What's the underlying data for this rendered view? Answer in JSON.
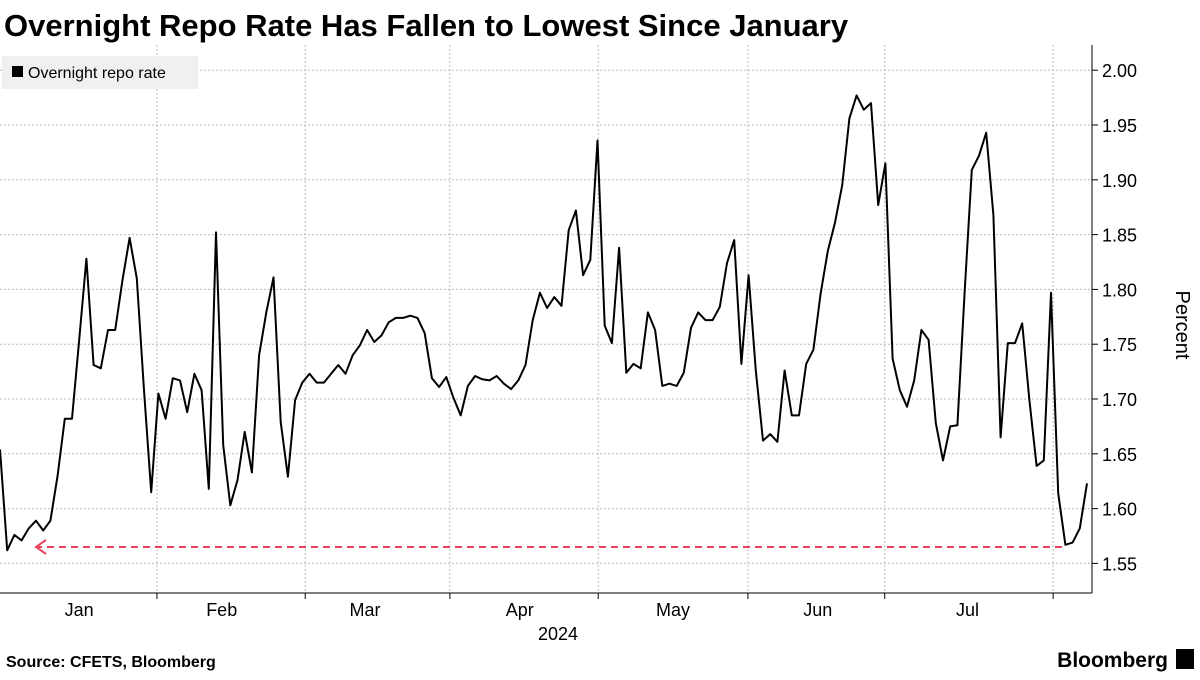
{
  "chart_data": {
    "type": "line",
    "title": "Overnight Repo Rate Has Fallen to Lowest Since January",
    "xlabel": "2024",
    "ylabel": "Percent",
    "source": "Source: CFETS, Bloomberg",
    "brand": "Bloomberg",
    "series": [
      {
        "name": "Overnight repo rate",
        "color": "#000000",
        "values": [
          1.654,
          1.562,
          1.576,
          1.571,
          1.582,
          1.589,
          1.58,
          1.589,
          1.63,
          1.682,
          1.682,
          1.754,
          1.828,
          1.731,
          1.728,
          1.763,
          1.763,
          1.808,
          1.847,
          1.81,
          1.708,
          1.615,
          1.705,
          1.682,
          1.719,
          1.717,
          1.688,
          1.723,
          1.708,
          1.618,
          1.852,
          1.658,
          1.603,
          1.626,
          1.67,
          1.633,
          1.74,
          1.779,
          1.811,
          1.679,
          1.629,
          1.699,
          1.715,
          1.723,
          1.715,
          1.715,
          1.723,
          1.731,
          1.723,
          1.74,
          1.749,
          1.763,
          1.752,
          1.758,
          1.77,
          1.774,
          1.774,
          1.776,
          1.774,
          1.76,
          1.719,
          1.711,
          1.72,
          1.701,
          1.685,
          1.712,
          1.721,
          1.718,
          1.717,
          1.721,
          1.714,
          1.709,
          1.717,
          1.731,
          1.772,
          1.797,
          1.783,
          1.793,
          1.785,
          1.854,
          1.872,
          1.813,
          1.827,
          1.936,
          1.767,
          1.751,
          1.838,
          1.724,
          1.732,
          1.728,
          1.779,
          1.763,
          1.712,
          1.714,
          1.712,
          1.724,
          1.765,
          1.779,
          1.772,
          1.772,
          1.784,
          1.824,
          1.845,
          1.732,
          1.813,
          1.726,
          1.662,
          1.668,
          1.661,
          1.726,
          1.685,
          1.685,
          1.732,
          1.745,
          1.796,
          1.835,
          1.861,
          1.895,
          1.956,
          1.977,
          1.964,
          1.97,
          1.877,
          1.915,
          1.737,
          1.708,
          1.693,
          1.717,
          1.763,
          1.754,
          1.678,
          1.644,
          1.675,
          1.676,
          1.797,
          1.909,
          1.922,
          1.943,
          1.868,
          1.665,
          1.751,
          1.751,
          1.769,
          1.699,
          1.639,
          1.644,
          1.797,
          1.614,
          1.567,
          1.569,
          1.582,
          1.623
        ]
      }
    ],
    "reference_line": {
      "value": 1.565,
      "color": "#e8415b"
    },
    "xlim": [
      0,
      151.7
    ],
    "xticks": [
      {
        "value": 11,
        "label": "Jan"
      },
      {
        "value": 30.8,
        "label": "Feb"
      },
      {
        "value": 50.7,
        "label": "Mar"
      },
      {
        "value": 72.2,
        "label": "Apr"
      },
      {
        "value": 93.5,
        "label": "May"
      },
      {
        "value": 113.6,
        "label": "Jun"
      },
      {
        "value": 134.4,
        "label": "Jul"
      }
    ],
    "xgrid": [
      21.8,
      42.4,
      62.5,
      83.1,
      103.9,
      122.9,
      146.3
    ],
    "ylim": [
      1.523,
      2.023
    ],
    "yticks": [
      1.55,
      {
        "value": 1.6,
        "label": "1.60"
      },
      1.65,
      {
        "value": 1.7,
        "label": "1.70"
      },
      1.75,
      {
        "value": 1.8,
        "label": "1.80"
      },
      1.85,
      {
        "value": 1.9,
        "label": "1.90"
      },
      1.95,
      {
        "value": 2,
        "label": "2.00"
      }
    ],
    "grid": true
  }
}
